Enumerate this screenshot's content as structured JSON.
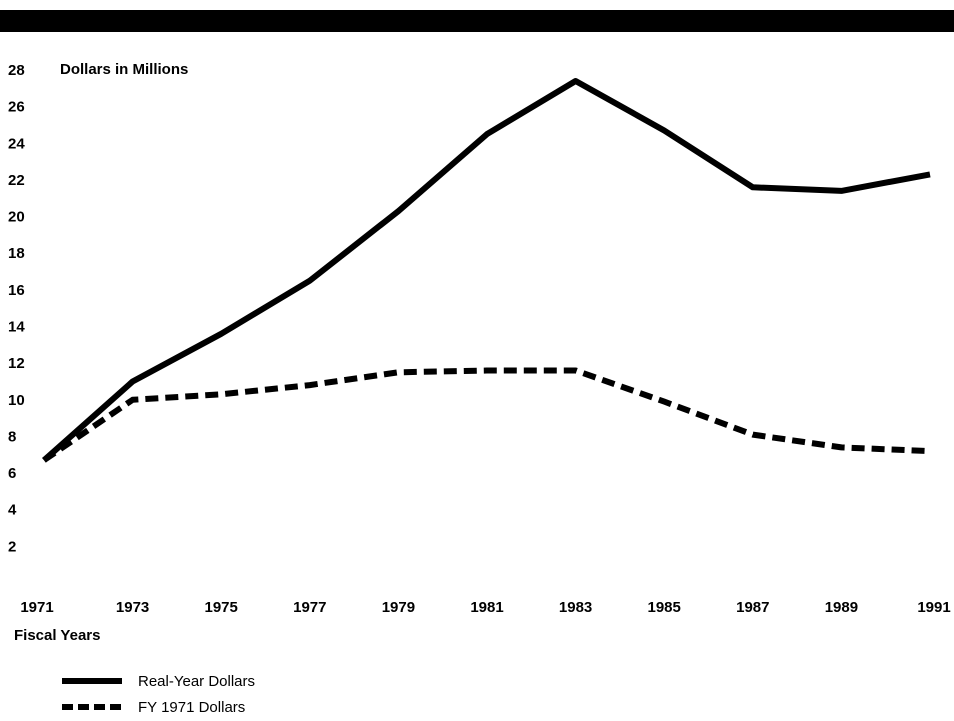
{
  "chart_data": {
    "type": "line",
    "ylabel": "Dollars in Millions",
    "xlabel": "Fiscal Years",
    "x": [
      "1971",
      "1973",
      "1975",
      "1977",
      "1979",
      "1981",
      "1983",
      "1985",
      "1987",
      "1989",
      "1991"
    ],
    "y_ticks": [
      "2",
      "4",
      "6",
      "8",
      "10",
      "12",
      "14",
      "16",
      "18",
      "20",
      "22",
      "24",
      "26",
      "28"
    ],
    "ylim": [
      0,
      28
    ],
    "grid": false,
    "legend_placement": "bottom-left",
    "series": [
      {
        "name": "Real-Year Dollars",
        "style": "solid",
        "color": "#000000",
        "values": [
          6.7,
          11.0,
          13.6,
          16.5,
          20.3,
          24.5,
          27.4,
          24.7,
          21.6,
          21.4,
          22.3
        ]
      },
      {
        "name": "FY 1971 Dollars",
        "style": "dashed",
        "color": "#000000",
        "values": [
          6.7,
          10.0,
          10.3,
          10.8,
          11.5,
          11.6,
          11.6,
          9.9,
          8.1,
          7.4,
          7.2
        ]
      }
    ]
  }
}
